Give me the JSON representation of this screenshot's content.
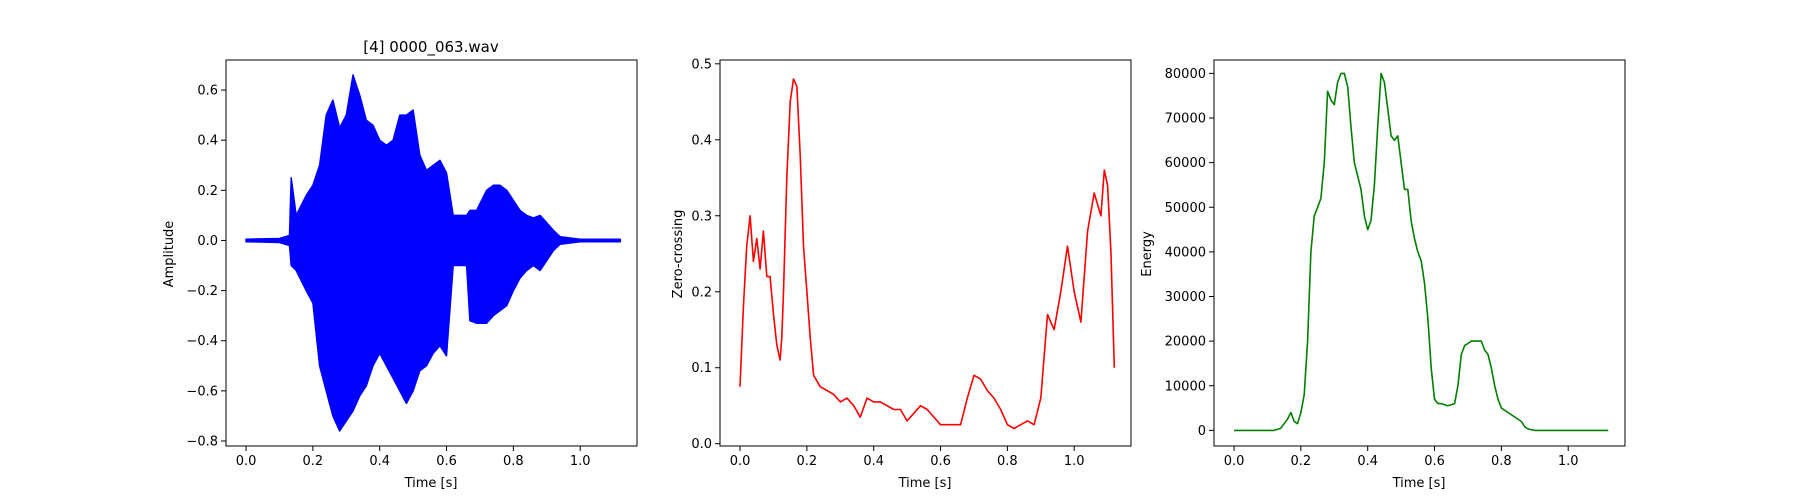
{
  "colors": {
    "waveform": "#0000ff",
    "zero_crossing": "#ff0000",
    "energy": "#008000",
    "axes": "#000000",
    "background": "#ffffff"
  },
  "chart_data": [
    {
      "type": "line",
      "title": "[4] 0000_063.wav",
      "xlabel": "Time [s]",
      "ylabel": "Amplitude",
      "xlim": [
        -0.06,
        1.17
      ],
      "ylim": [
        -0.82,
        0.72
      ],
      "xticks": [
        0.0,
        0.2,
        0.4,
        0.6,
        0.8,
        1.0
      ],
      "xtick_labels": [
        "0.0",
        "0.2",
        "0.4",
        "0.6",
        "0.8",
        "1.0"
      ],
      "yticks": [
        -0.8,
        -0.6,
        -0.4,
        -0.2,
        0.0,
        0.2,
        0.4,
        0.6
      ],
      "ytick_labels": [
        "−0.8",
        "−0.6",
        "−0.4",
        "−0.2",
        "0.0",
        "0.2",
        "0.4",
        "0.6"
      ],
      "grid": false,
      "series": [
        {
          "color": "#0000ff",
          "style": "waveform",
          "x": [
            0.0,
            0.1,
            0.13,
            0.135,
            0.15,
            0.18,
            0.2,
            0.22,
            0.24,
            0.26,
            0.28,
            0.3,
            0.32,
            0.34,
            0.36,
            0.38,
            0.4,
            0.42,
            0.44,
            0.46,
            0.48,
            0.5,
            0.52,
            0.54,
            0.56,
            0.58,
            0.6,
            0.62,
            0.64,
            0.66,
            0.67,
            0.69,
            0.72,
            0.74,
            0.76,
            0.78,
            0.8,
            0.82,
            0.84,
            0.86,
            0.88,
            0.9,
            0.92,
            0.94,
            0.97,
            1.0,
            1.12
          ],
          "upper": [
            0.005,
            0.008,
            0.02,
            0.25,
            0.1,
            0.18,
            0.22,
            0.3,
            0.5,
            0.56,
            0.45,
            0.5,
            0.66,
            0.58,
            0.48,
            0.46,
            0.4,
            0.38,
            0.4,
            0.5,
            0.5,
            0.52,
            0.34,
            0.28,
            0.3,
            0.32,
            0.27,
            0.1,
            0.1,
            0.1,
            0.12,
            0.12,
            0.2,
            0.22,
            0.22,
            0.2,
            0.16,
            0.12,
            0.1,
            0.09,
            0.1,
            0.07,
            0.04,
            0.015,
            0.01,
            0.005,
            0.005
          ],
          "lower": [
            -0.005,
            -0.008,
            -0.02,
            -0.1,
            -0.12,
            -0.2,
            -0.25,
            -0.5,
            -0.6,
            -0.7,
            -0.76,
            -0.72,
            -0.68,
            -0.62,
            -0.58,
            -0.5,
            -0.45,
            -0.5,
            -0.55,
            -0.6,
            -0.65,
            -0.6,
            -0.52,
            -0.5,
            -0.45,
            -0.42,
            -0.46,
            -0.1,
            -0.1,
            -0.1,
            -0.32,
            -0.33,
            -0.33,
            -0.3,
            -0.28,
            -0.26,
            -0.2,
            -0.15,
            -0.12,
            -0.1,
            -0.12,
            -0.08,
            -0.04,
            -0.015,
            -0.01,
            -0.005,
            -0.005
          ]
        }
      ]
    },
    {
      "type": "line",
      "title": "",
      "xlabel": "Time [s]",
      "ylabel": "Zero-crossing",
      "xlim": [
        -0.06,
        1.17
      ],
      "ylim": [
        -0.003,
        0.505
      ],
      "xticks": [
        0.0,
        0.2,
        0.4,
        0.6,
        0.8,
        1.0
      ],
      "xtick_labels": [
        "0.0",
        "0.2",
        "0.4",
        "0.6",
        "0.8",
        "1.0"
      ],
      "yticks": [
        0.0,
        0.1,
        0.2,
        0.3,
        0.4,
        0.5
      ],
      "ytick_labels": [
        "0.0",
        "0.1",
        "0.2",
        "0.3",
        "0.4",
        "0.5"
      ],
      "grid": false,
      "series": [
        {
          "color": "#ff0000",
          "x": [
            0.0,
            0.01,
            0.02,
            0.03,
            0.04,
            0.05,
            0.06,
            0.07,
            0.08,
            0.09,
            0.1,
            0.11,
            0.12,
            0.125,
            0.13,
            0.14,
            0.15,
            0.16,
            0.17,
            0.18,
            0.19,
            0.2,
            0.21,
            0.22,
            0.24,
            0.26,
            0.28,
            0.3,
            0.32,
            0.34,
            0.36,
            0.38,
            0.4,
            0.42,
            0.44,
            0.46,
            0.48,
            0.5,
            0.52,
            0.54,
            0.56,
            0.58,
            0.6,
            0.62,
            0.64,
            0.66,
            0.68,
            0.7,
            0.72,
            0.74,
            0.76,
            0.78,
            0.8,
            0.82,
            0.84,
            0.86,
            0.88,
            0.9,
            0.92,
            0.94,
            0.96,
            0.98,
            1.0,
            1.02,
            1.04,
            1.06,
            1.08,
            1.09,
            1.1,
            1.11,
            1.12
          ],
          "y": [
            0.075,
            0.18,
            0.26,
            0.3,
            0.24,
            0.27,
            0.23,
            0.28,
            0.22,
            0.22,
            0.17,
            0.13,
            0.11,
            0.14,
            0.2,
            0.35,
            0.45,
            0.48,
            0.47,
            0.38,
            0.26,
            0.2,
            0.14,
            0.09,
            0.075,
            0.07,
            0.065,
            0.055,
            0.06,
            0.05,
            0.035,
            0.06,
            0.055,
            0.055,
            0.05,
            0.045,
            0.045,
            0.03,
            0.04,
            0.05,
            0.045,
            0.035,
            0.025,
            0.025,
            0.025,
            0.025,
            0.06,
            0.09,
            0.085,
            0.07,
            0.06,
            0.045,
            0.025,
            0.02,
            0.025,
            0.03,
            0.025,
            0.06,
            0.17,
            0.15,
            0.2,
            0.26,
            0.2,
            0.16,
            0.28,
            0.33,
            0.3,
            0.36,
            0.34,
            0.25,
            0.1
          ]
        }
      ]
    },
    {
      "type": "line",
      "title": "",
      "xlabel": "Time [s]",
      "ylabel": "Energy",
      "xlim": [
        -0.06,
        1.17
      ],
      "ylim": [
        -3500,
        83000
      ],
      "xticks": [
        0.0,
        0.2,
        0.4,
        0.6,
        0.8,
        1.0
      ],
      "xtick_labels": [
        "0.0",
        "0.2",
        "0.4",
        "0.6",
        "0.8",
        "1.0"
      ],
      "yticks": [
        0,
        10000,
        20000,
        30000,
        40000,
        50000,
        60000,
        70000,
        80000
      ],
      "ytick_labels": [
        "0",
        "10000",
        "20000",
        "30000",
        "40000",
        "50000",
        "60000",
        "70000",
        "80000"
      ],
      "grid": false,
      "series": [
        {
          "color": "#008000",
          "x": [
            0.0,
            0.12,
            0.14,
            0.16,
            0.17,
            0.18,
            0.19,
            0.2,
            0.21,
            0.22,
            0.23,
            0.24,
            0.25,
            0.26,
            0.27,
            0.28,
            0.29,
            0.3,
            0.31,
            0.32,
            0.33,
            0.34,
            0.35,
            0.36,
            0.37,
            0.38,
            0.39,
            0.4,
            0.41,
            0.42,
            0.43,
            0.44,
            0.45,
            0.46,
            0.47,
            0.48,
            0.49,
            0.5,
            0.51,
            0.52,
            0.53,
            0.54,
            0.55,
            0.56,
            0.57,
            0.58,
            0.59,
            0.6,
            0.61,
            0.62,
            0.64,
            0.66,
            0.67,
            0.68,
            0.69,
            0.7,
            0.71,
            0.72,
            0.74,
            0.75,
            0.76,
            0.77,
            0.78,
            0.79,
            0.8,
            0.81,
            0.82,
            0.84,
            0.86,
            0.87,
            0.88,
            0.9,
            1.0,
            1.12
          ],
          "y": [
            0,
            0,
            500,
            2500,
            4000,
            2000,
            1500,
            4000,
            8000,
            20000,
            40000,
            48000,
            50000,
            52000,
            60000,
            76000,
            74000,
            73000,
            78000,
            80000,
            80000,
            77000,
            68000,
            60000,
            57000,
            54000,
            48000,
            45000,
            47000,
            55000,
            68000,
            80000,
            78000,
            72000,
            66000,
            65000,
            66000,
            60000,
            54000,
            54000,
            47000,
            43000,
            40000,
            38000,
            33000,
            25000,
            14000,
            7000,
            6000,
            6000,
            5500,
            6000,
            10000,
            17000,
            19000,
            19500,
            20000,
            20000,
            20000,
            18000,
            17000,
            14000,
            10000,
            7000,
            5000,
            4500,
            4000,
            3000,
            2000,
            800,
            300,
            0,
            0,
            0
          ]
        }
      ]
    }
  ]
}
